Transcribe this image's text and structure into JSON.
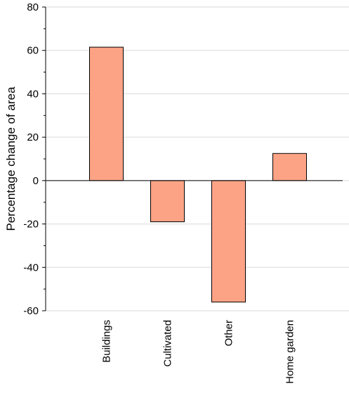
{
  "chart_data": {
    "type": "bar",
    "categories": [
      "Buildings",
      "Cultivated",
      "Other",
      "Home garden"
    ],
    "values": [
      61.5,
      -19,
      -56,
      12.5
    ],
    "title": "",
    "xlabel": "",
    "ylabel": "Percentage change of area",
    "ylim": [
      -60,
      80
    ],
    "yticks": [
      -60,
      -40,
      -20,
      0,
      20,
      40,
      60,
      80
    ],
    "ytick_labels": [
      "-60",
      "-40",
      "-20",
      "0",
      "20",
      "40",
      "60",
      "80"
    ],
    "grid": true,
    "bar_color": "#fca386",
    "bar_edge_color": "#000000",
    "grid_color": "#d9d9d9"
  }
}
